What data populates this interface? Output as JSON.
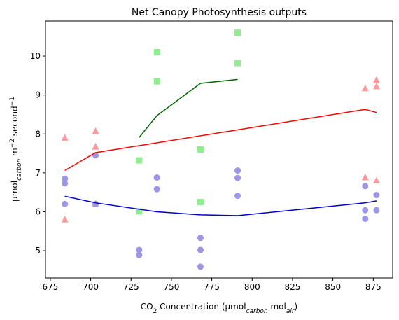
{
  "chart_data": {
    "type": "scatter",
    "title": "Net Canopy Photosynthesis outputs",
    "xlabel": {
      "main": "CO",
      "sub2": "2",
      "mid": " Concentration (µmol",
      "sub_carbon": "carbon",
      "mol": " mol",
      "sub_air": "air",
      "end": ")"
    },
    "ylabel": {
      "main": "µmol",
      "sub_carbon": "carbon",
      "unit": " m",
      "sup": "−2",
      "second": " second",
      "sup2": "−1"
    },
    "xlim": [
      672,
      887
    ],
    "ylim": [
      4.3,
      10.9
    ],
    "xticks": [
      675,
      700,
      725,
      750,
      775,
      800,
      825,
      850,
      875
    ],
    "yticks": [
      5,
      6,
      7,
      8,
      9,
      10
    ],
    "series": [
      {
        "name": "green",
        "marker": "square",
        "color": "#90ee90",
        "points": [
          {
            "x": 730,
            "y": 7.32
          },
          {
            "x": 730,
            "y": 6.01
          },
          {
            "x": 741,
            "y": 10.1
          },
          {
            "x": 741,
            "y": 9.35
          },
          {
            "x": 768,
            "y": 7.6
          },
          {
            "x": 768,
            "y": 6.25
          },
          {
            "x": 791,
            "y": 10.6
          },
          {
            "x": 791,
            "y": 9.82
          }
        ],
        "line": {
          "color": "#006400",
          "x": [
            730,
            741,
            768,
            791
          ],
          "y": [
            7.91,
            8.47,
            9.3,
            9.4
          ]
        }
      },
      {
        "name": "red",
        "marker": "triangle",
        "color": "#ff9999",
        "points": [
          {
            "x": 684,
            "y": 7.9
          },
          {
            "x": 684,
            "y": 5.8
          },
          {
            "x": 703,
            "y": 8.07
          },
          {
            "x": 703,
            "y": 7.67
          },
          {
            "x": 703,
            "y": 6.2
          },
          {
            "x": 870,
            "y": 9.17
          },
          {
            "x": 870,
            "y": 6.88
          },
          {
            "x": 877,
            "y": 9.38
          },
          {
            "x": 877,
            "y": 9.22
          },
          {
            "x": 877,
            "y": 6.8
          }
        ],
        "line": {
          "color": "#ff0000",
          "x": [
            684,
            703,
            870,
            877
          ],
          "y": [
            7.06,
            7.52,
            8.63,
            8.55
          ]
        }
      },
      {
        "name": "blue",
        "marker": "circle",
        "color": "#9b96e8",
        "points": [
          {
            "x": 684,
            "y": 6.85
          },
          {
            "x": 684,
            "y": 6.73
          },
          {
            "x": 684,
            "y": 6.2
          },
          {
            "x": 703,
            "y": 7.45
          },
          {
            "x": 703,
            "y": 6.2
          },
          {
            "x": 730,
            "y": 5.02
          },
          {
            "x": 730,
            "y": 4.89
          },
          {
            "x": 741,
            "y": 6.88
          },
          {
            "x": 741,
            "y": 6.58
          },
          {
            "x": 768,
            "y": 5.33
          },
          {
            "x": 768,
            "y": 5.02
          },
          {
            "x": 768,
            "y": 4.59
          },
          {
            "x": 791,
            "y": 7.06
          },
          {
            "x": 791,
            "y": 6.87
          },
          {
            "x": 791,
            "y": 6.41
          },
          {
            "x": 870,
            "y": 6.66
          },
          {
            "x": 870,
            "y": 6.04
          },
          {
            "x": 870,
            "y": 5.82
          },
          {
            "x": 877,
            "y": 6.43
          },
          {
            "x": 877,
            "y": 6.04
          }
        ],
        "line": {
          "color": "#0000cd",
          "x": [
            684,
            703,
            741,
            768,
            791,
            870,
            877
          ],
          "y": [
            6.4,
            6.23,
            6.0,
            5.92,
            5.9,
            6.23,
            6.28
          ]
        }
      }
    ]
  }
}
